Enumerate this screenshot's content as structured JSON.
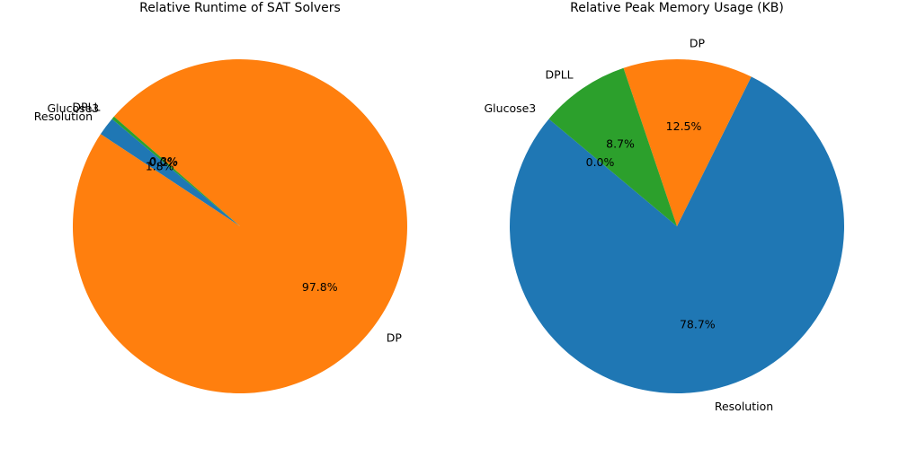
{
  "chart_data": [
    {
      "type": "pie",
      "title": "Relative Runtime of SAT Solvers",
      "labels": [
        "Resolution",
        "DP",
        "DPLL",
        "Glucose3"
      ],
      "values": [
        1.8,
        97.8,
        0.3,
        0.0
      ],
      "value_labels": [
        "1.8%",
        "97.8%",
        "0.3%",
        "0.0%"
      ],
      "colors": [
        "#1f77b4",
        "#ff7f0e",
        "#2ca02c",
        "#d62728"
      ]
    },
    {
      "type": "pie",
      "title": "Relative Peak Memory Usage (KB)",
      "labels": [
        "Resolution",
        "DP",
        "DPLL",
        "Glucose3"
      ],
      "values": [
        78.7,
        12.5,
        8.7,
        0.0
      ],
      "value_labels": [
        "78.7%",
        "12.5%",
        "8.7%",
        "0.0%"
      ],
      "colors": [
        "#1f77b4",
        "#ff7f0e",
        "#2ca02c",
        "#d62728"
      ]
    }
  ]
}
